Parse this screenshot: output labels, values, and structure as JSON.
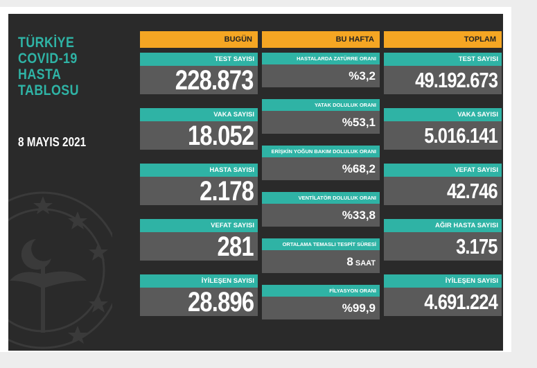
{
  "title": [
    "TÜRKİYE",
    "COVID-19",
    "HASTA",
    "TABLOSU"
  ],
  "date": "8 MAYIS 2021",
  "columns": {
    "today": {
      "header": "BUGÜN",
      "cards": [
        {
          "label": "TEST SAYISI",
          "value": "228.873"
        },
        {
          "label": "VAKA SAYISI",
          "value": "18.052"
        },
        {
          "label": "HASTA SAYISI",
          "value": "2.178"
        },
        {
          "label": "VEFAT SAYISI",
          "value": "281"
        },
        {
          "label": "İYİLEŞEN SAYISI",
          "value": "28.896"
        }
      ]
    },
    "week": {
      "header": "BU HAFTA",
      "cards": [
        {
          "label": "HASTALARDA ZATÜRRE ORANI",
          "value": "%3,2"
        },
        {
          "label": "YATAK DOLULUK ORANI",
          "value": "%53,1"
        },
        {
          "label": "ERİŞKİN YOĞUN BAKIM DOLULUK ORANI",
          "value": "%68,2"
        },
        {
          "label": "VENTİLATÖR DOLULUK ORANI",
          "value": "%33,8"
        },
        {
          "label": "ORTALAMA TEMASLI TESPİT SÜRESİ",
          "value": "8",
          "unit": "SAAT"
        },
        {
          "label": "FİLYASYON ORANI",
          "value": "%99,9"
        }
      ]
    },
    "total": {
      "header": "TOPLAM",
      "cards": [
        {
          "label": "TEST SAYISI",
          "value": "49.192.673"
        },
        {
          "label": "VAKA SAYISI",
          "value": "5.016.141"
        },
        {
          "label": "VEFAT SAYISI",
          "value": "42.746"
        },
        {
          "label": "AĞIR HASTA SAYISI",
          "value": "3.175"
        },
        {
          "label": "İYİLEŞEN SAYISI",
          "value": "4.691.224"
        }
      ]
    }
  },
  "colors": {
    "background": "#2a2a2a",
    "header": "#f5a623",
    "label": "#2fb3a5",
    "value_box": "#5a5a5a",
    "title": "#2fb3a5"
  },
  "icons": [
    "ministry-emblem-icon"
  ]
}
